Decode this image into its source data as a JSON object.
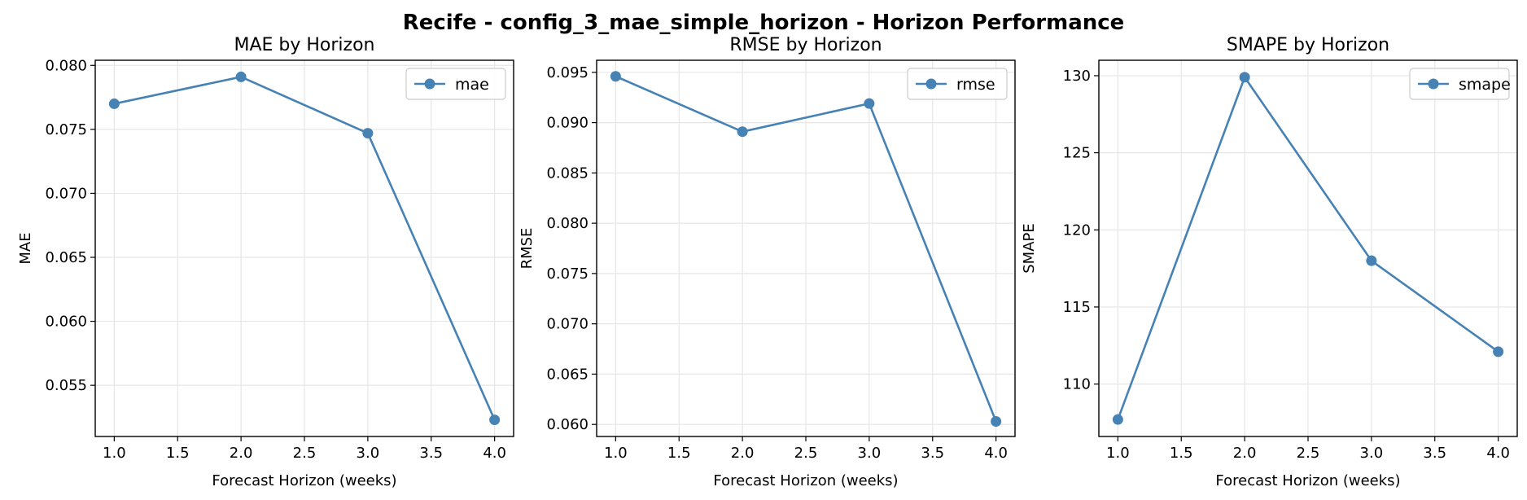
{
  "figure": {
    "title": "Recife - config_3_mae_simple_horizon - Horizon Performance"
  },
  "colors": {
    "line": "#4682b4",
    "grid": "#e6e6e6",
    "axis": "#000000"
  },
  "chart_data": [
    {
      "type": "line",
      "title": "MAE by Horizon",
      "xlabel": "Forecast Horizon (weeks)",
      "ylabel": "MAE",
      "xlim": [
        0.85,
        4.15
      ],
      "ylim": [
        0.051,
        0.0804
      ],
      "xticks": [
        1.0,
        1.5,
        2.0,
        2.5,
        3.0,
        3.5,
        4.0
      ],
      "xtick_labels": [
        "1.0",
        "1.5",
        "2.0",
        "2.5",
        "3.0",
        "3.5",
        "4.0"
      ],
      "yticks": [
        0.055,
        0.06,
        0.065,
        0.07,
        0.075,
        0.08
      ],
      "ytick_labels": [
        "0.055",
        "0.060",
        "0.065",
        "0.070",
        "0.075",
        "0.080"
      ],
      "grid": true,
      "legend_position": "top-right",
      "series": [
        {
          "name": "mae",
          "x": [
            1.0,
            2.0,
            3.0,
            4.0
          ],
          "y": [
            0.077,
            0.0791,
            0.0747,
            0.0523
          ]
        }
      ]
    },
    {
      "type": "line",
      "title": "RMSE by Horizon",
      "xlabel": "Forecast Horizon (weeks)",
      "ylabel": "RMSE",
      "xlim": [
        0.85,
        4.15
      ],
      "ylim": [
        0.0588,
        0.0962
      ],
      "xticks": [
        1.0,
        1.5,
        2.0,
        2.5,
        3.0,
        3.5,
        4.0
      ],
      "xtick_labels": [
        "1.0",
        "1.5",
        "2.0",
        "2.5",
        "3.0",
        "3.5",
        "4.0"
      ],
      "yticks": [
        0.06,
        0.065,
        0.07,
        0.075,
        0.08,
        0.085,
        0.09,
        0.095
      ],
      "ytick_labels": [
        "0.060",
        "0.065",
        "0.070",
        "0.075",
        "0.080",
        "0.085",
        "0.090",
        "0.095"
      ],
      "grid": true,
      "legend_position": "top-right",
      "series": [
        {
          "name": "rmse",
          "x": [
            1.0,
            2.0,
            3.0,
            4.0
          ],
          "y": [
            0.0946,
            0.0891,
            0.0919,
            0.0603
          ]
        }
      ]
    },
    {
      "type": "line",
      "title": "SMAPE by Horizon",
      "xlabel": "Forecast Horizon (weeks)",
      "ylabel": "SMAPE",
      "xlim": [
        0.85,
        4.15
      ],
      "ylim": [
        106.6,
        131.0
      ],
      "xticks": [
        1.0,
        1.5,
        2.0,
        2.5,
        3.0,
        3.5,
        4.0
      ],
      "xtick_labels": [
        "1.0",
        "1.5",
        "2.0",
        "2.5",
        "3.0",
        "3.5",
        "4.0"
      ],
      "yticks": [
        110,
        115,
        120,
        125,
        130
      ],
      "ytick_labels": [
        "110",
        "115",
        "120",
        "125",
        "130"
      ],
      "grid": true,
      "legend_position": "top-right",
      "series": [
        {
          "name": "smape",
          "x": [
            1.0,
            2.0,
            3.0,
            4.0
          ],
          "y": [
            107.7,
            129.9,
            118.0,
            112.1
          ]
        }
      ]
    }
  ]
}
